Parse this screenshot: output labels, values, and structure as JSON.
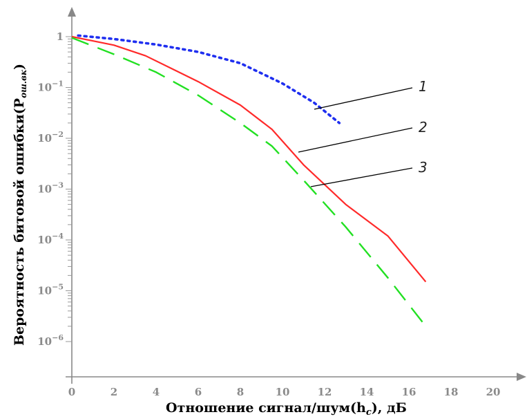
{
  "chart_data": {
    "type": "line",
    "title": "",
    "xlabel": "Отношение сигнал/шум(h",
    "xlabel_sub": "c",
    "xlabel_tail": "), дБ",
    "ylabel": "Вероятность битовой ошибки(P",
    "ylabel_sub": "ош.вк",
    "ylabel_tail": ")",
    "x_ticks": [
      "0",
      "2",
      "4",
      "6",
      "8",
      "10",
      "12",
      "14",
      "16",
      "18",
      "20"
    ],
    "y_ticks": [
      {
        "base": "1",
        "exp": ""
      },
      {
        "base": "10",
        "exp": "−1"
      },
      {
        "base": "10",
        "exp": "−2"
      },
      {
        "base": "10",
        "exp": "−3"
      },
      {
        "base": "10",
        "exp": "−4"
      },
      {
        "base": "10",
        "exp": "−5"
      },
      {
        "base": "10",
        "exp": "−6"
      }
    ],
    "xlim": [
      0,
      20
    ],
    "ylim_log10": [
      -6,
      0
    ],
    "y_scale": "log",
    "grid": false,
    "series": [
      {
        "name": "1",
        "color": "#1f2ff0",
        "style": "dotted",
        "x": [
          0.3,
          2,
          4,
          6,
          8,
          10,
          11.5,
          12.7
        ],
        "y": [
          1.05,
          0.9,
          0.7,
          0.5,
          0.3,
          0.12,
          0.05,
          0.02
        ]
      },
      {
        "name": "2",
        "color": "#ff2a2a",
        "style": "solid",
        "x": [
          0,
          2,
          3.5,
          6,
          8,
          9.5,
          11,
          13,
          15,
          16.8
        ],
        "y": [
          1,
          0.68,
          0.42,
          0.13,
          0.045,
          0.015,
          0.003,
          0.0005,
          0.00012,
          1.5e-05
        ]
      },
      {
        "name": "3",
        "color": "#22e022",
        "style": "dashed",
        "x": [
          0,
          2,
          4,
          6,
          8,
          9.5,
          11,
          13,
          15,
          16.8
        ],
        "y": [
          0.95,
          0.45,
          0.2,
          0.07,
          0.02,
          0.007,
          0.0015,
          0.00018,
          1.8e-05,
          2e-06
        ]
      }
    ],
    "annotations": [
      "1",
      "2",
      "3"
    ]
  }
}
